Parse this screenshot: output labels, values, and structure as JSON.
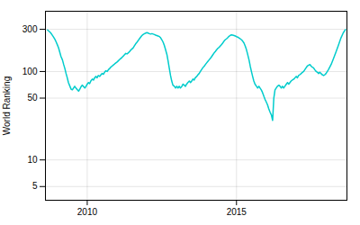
{
  "chart_data": {
    "type": "line",
    "ylabel": "World Ranking",
    "color": "#00cccc",
    "log": "y",
    "grid": true,
    "xlim": [
      2008.6,
      2018.7
    ],
    "xticks": [
      2010,
      2015
    ],
    "ylim": [
      3.5,
      480
    ],
    "yticks": [
      5,
      10,
      50,
      100,
      300
    ],
    "x": [
      2008.67,
      2008.72,
      2008.77,
      2008.82,
      2008.87,
      2008.92,
      2008.96,
      2009.0,
      2009.04,
      2009.08,
      2009.12,
      2009.17,
      2009.21,
      2009.25,
      2009.29,
      2009.33,
      2009.37,
      2009.42,
      2009.46,
      2009.5,
      2009.54,
      2009.58,
      2009.62,
      2009.67,
      2009.71,
      2009.75,
      2009.79,
      2009.83,
      2009.87,
      2009.92,
      2009.96,
      2010.0,
      2010.04,
      2010.08,
      2010.12,
      2010.17,
      2010.21,
      2010.25,
      2010.29,
      2010.33,
      2010.37,
      2010.42,
      2010.46,
      2010.5,
      2010.54,
      2010.58,
      2010.62,
      2010.67,
      2010.71,
      2010.75,
      2010.79,
      2010.83,
      2010.87,
      2010.92,
      2010.96,
      2011.0,
      2011.04,
      2011.08,
      2011.12,
      2011.17,
      2011.21,
      2011.25,
      2011.29,
      2011.33,
      2011.37,
      2011.42,
      2011.46,
      2011.5,
      2011.54,
      2011.58,
      2011.62,
      2011.67,
      2011.71,
      2011.75,
      2011.79,
      2011.83,
      2011.87,
      2011.92,
      2011.96,
      2012.0,
      2012.04,
      2012.08,
      2012.12,
      2012.17,
      2012.21,
      2012.25,
      2012.29,
      2012.33,
      2012.37,
      2012.42,
      2012.46,
      2012.5,
      2012.54,
      2012.58,
      2012.62,
      2012.67,
      2012.71,
      2012.75,
      2012.79,
      2012.83,
      2012.87,
      2012.92,
      2012.96,
      2013.0,
      2013.04,
      2013.08,
      2013.12,
      2013.17,
      2013.21,
      2013.25,
      2013.29,
      2013.33,
      2013.37,
      2013.42,
      2013.46,
      2013.5,
      2013.54,
      2013.58,
      2013.62,
      2013.67,
      2013.71,
      2013.75,
      2013.79,
      2013.83,
      2013.87,
      2013.92,
      2013.96,
      2014.0,
      2014.04,
      2014.08,
      2014.12,
      2014.17,
      2014.21,
      2014.25,
      2014.29,
      2014.33,
      2014.37,
      2014.42,
      2014.46,
      2014.5,
      2014.54,
      2014.58,
      2014.62,
      2014.67,
      2014.71,
      2014.75,
      2014.79,
      2014.83,
      2014.87,
      2014.92,
      2014.96,
      2015.0,
      2015.04,
      2015.08,
      2015.12,
      2015.17,
      2015.21,
      2015.25,
      2015.29,
      2015.33,
      2015.37,
      2015.42,
      2015.46,
      2015.5,
      2015.54,
      2015.58,
      2015.62,
      2015.67,
      2015.71,
      2015.75,
      2015.79,
      2015.83,
      2015.87,
      2015.92,
      2015.96,
      2016.0,
      2016.04,
      2016.08,
      2016.12,
      2016.17,
      2016.21,
      2016.25,
      2016.29,
      2016.33,
      2016.37,
      2016.42,
      2016.46,
      2016.5,
      2016.54,
      2016.58,
      2016.62,
      2016.67,
      2016.71,
      2016.75,
      2016.79,
      2016.83,
      2016.87,
      2016.92,
      2016.96,
      2017.0,
      2017.04,
      2017.08,
      2017.12,
      2017.17,
      2017.21,
      2017.25,
      2017.29,
      2017.33,
      2017.37,
      2017.42,
      2017.46,
      2017.5,
      2017.54,
      2017.58,
      2017.62,
      2017.67,
      2017.71,
      2017.75,
      2017.79,
      2017.83,
      2017.87,
      2017.92,
      2017.96,
      2018.0,
      2018.08,
      2018.17,
      2018.25,
      2018.33,
      2018.42,
      2018.5,
      2018.58,
      2018.65
    ],
    "values": [
      295,
      285,
      275,
      260,
      245,
      230,
      215,
      200,
      185,
      165,
      148,
      135,
      120,
      108,
      95,
      85,
      75,
      68,
      63,
      62,
      65,
      68,
      65,
      62,
      60,
      63,
      67,
      70,
      68,
      65,
      68,
      72,
      75,
      73,
      78,
      82,
      80,
      85,
      88,
      85,
      90,
      88,
      92,
      95,
      93,
      98,
      102,
      100,
      105,
      108,
      112,
      115,
      118,
      122,
      125,
      128,
      132,
      136,
      140,
      145,
      150,
      155,
      160,
      158,
      162,
      168,
      175,
      180,
      185,
      195,
      205,
      215,
      225,
      235,
      245,
      255,
      262,
      268,
      272,
      275,
      272,
      268,
      265,
      268,
      265,
      262,
      258,
      255,
      252,
      248,
      240,
      228,
      215,
      198,
      178,
      155,
      130,
      108,
      90,
      78,
      70,
      68,
      65,
      68,
      65,
      68,
      65,
      68,
      72,
      70,
      68,
      72,
      75,
      78,
      75,
      78,
      82,
      80,
      85,
      88,
      92,
      95,
      100,
      105,
      110,
      115,
      120,
      125,
      130,
      135,
      140,
      148,
      155,
      162,
      168,
      175,
      182,
      188,
      195,
      202,
      210,
      220,
      228,
      235,
      242,
      250,
      255,
      260,
      258,
      255,
      252,
      248,
      245,
      240,
      235,
      228,
      220,
      210,
      195,
      178,
      158,
      135,
      115,
      100,
      88,
      78,
      72,
      68,
      65,
      68,
      65,
      62,
      58,
      52,
      48,
      45,
      42,
      38,
      35,
      32,
      28,
      50,
      62,
      65,
      68,
      70,
      68,
      65,
      68,
      65,
      68,
      72,
      75,
      72,
      75,
      78,
      80,
      82,
      85,
      88,
      85,
      90,
      92,
      95,
      98,
      100,
      105,
      110,
      115,
      118,
      120,
      115,
      112,
      110,
      105,
      100,
      98,
      95,
      98,
      95,
      92,
      90,
      92,
      95,
      105,
      120,
      140,
      165,
      200,
      240,
      275,
      298
    ]
  }
}
